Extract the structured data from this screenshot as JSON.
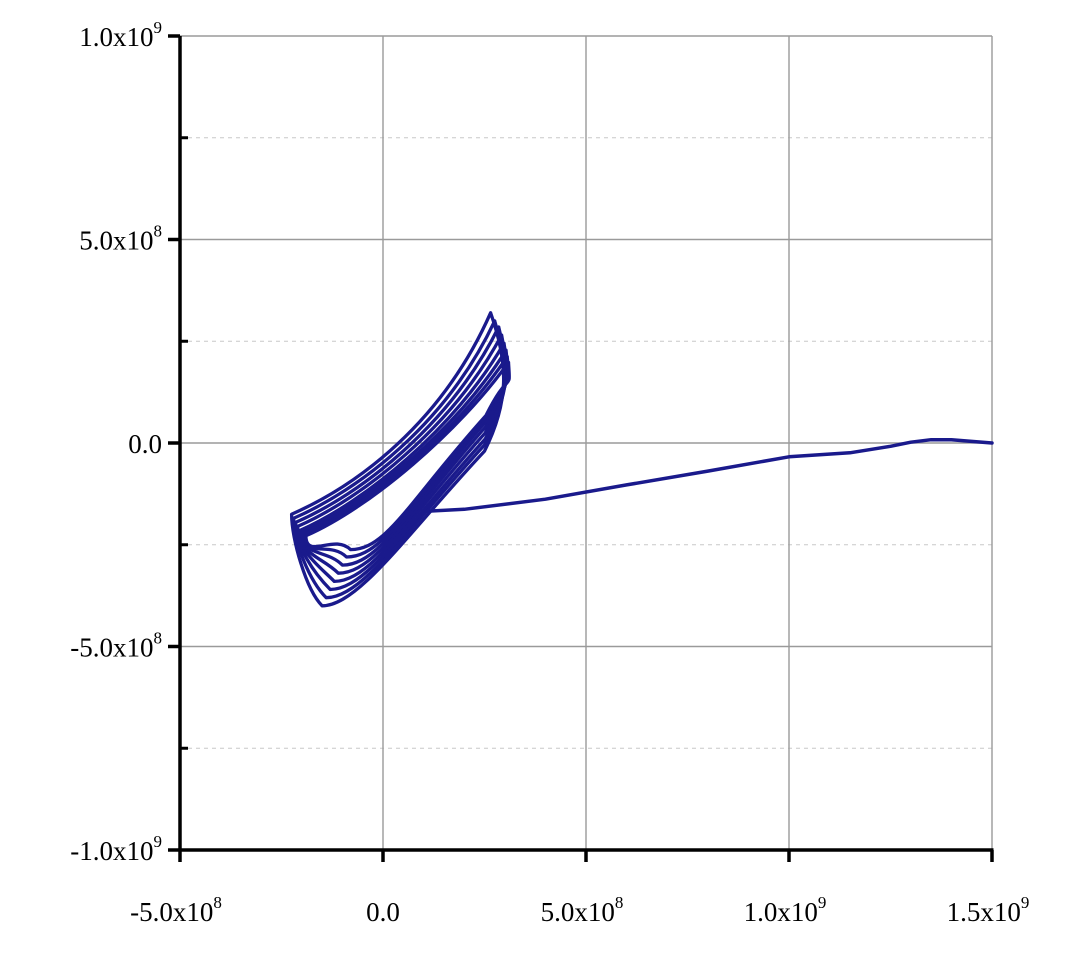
{
  "chart_data": {
    "type": "line",
    "title": "",
    "xlabel": "",
    "ylabel": "",
    "xlim": [
      -500000000,
      1500000000
    ],
    "ylim": [
      -1000000000,
      1000000000
    ],
    "grid": {
      "major": true,
      "minor_y": true,
      "minor_style": "dashed"
    },
    "line_color": "#1a1a8c",
    "x_ticks": [
      {
        "value": -500000000,
        "mantissa": "-5.0x10",
        "exponent": "8"
      },
      {
        "value": 0,
        "mantissa": "0.0",
        "exponent": ""
      },
      {
        "value": 500000000,
        "mantissa": "5.0x10",
        "exponent": "8"
      },
      {
        "value": 1000000000,
        "mantissa": "1.0x10",
        "exponent": "9"
      },
      {
        "value": 1500000000,
        "mantissa": "1.5x10",
        "exponent": "9"
      }
    ],
    "y_ticks": [
      {
        "value": 1000000000,
        "mantissa": "1.0x10",
        "exponent": "9"
      },
      {
        "value": 500000000,
        "mantissa": "5.0x10",
        "exponent": "8"
      },
      {
        "value": 0,
        "mantissa": "0.0",
        "exponent": ""
      },
      {
        "value": -500000000,
        "mantissa": "-5.0x10",
        "exponent": "8"
      },
      {
        "value": -1000000000,
        "mantissa": "-1.0x10",
        "exponent": "9"
      }
    ],
    "y_minor_ticks": [
      750000000,
      250000000,
      -250000000,
      -750000000
    ],
    "series": [
      {
        "kind": "tail",
        "points": [
          [
            1500000000,
            0
          ],
          [
            1450000000,
            4000000
          ],
          [
            1400000000,
            8000000
          ],
          [
            1350000000,
            8000000
          ],
          [
            1300000000,
            2000000
          ],
          [
            1250000000,
            -8000000
          ],
          [
            1150000000,
            -24000000
          ],
          [
            1000000000,
            -34000000
          ],
          [
            800000000,
            -69000000
          ],
          [
            600000000,
            -103000000
          ],
          [
            400000000,
            -138000000
          ],
          [
            200000000,
            -163000000
          ],
          [
            100000000,
            -168000000
          ]
        ]
      },
      {
        "kind": "hysteresis-loops",
        "cycles": [
          {
            "tip_x": 265000000,
            "tip_y": 320000000,
            "bottom_x": -150000000,
            "bottom_y": -400000000,
            "left_x": -225000000,
            "left_y": -175000000,
            "right_x": 310000000,
            "right_y": 100000000
          },
          {
            "tip_x": 275000000,
            "tip_y": 300000000,
            "bottom_x": -140000000,
            "bottom_y": -380000000,
            "left_x": -220000000,
            "left_y": -185000000,
            "right_x": 310000000,
            "right_y": 115000000
          },
          {
            "tip_x": 285000000,
            "tip_y": 285000000,
            "bottom_x": -130000000,
            "bottom_y": -360000000,
            "left_x": -215000000,
            "left_y": -195000000,
            "right_x": 312000000,
            "right_y": 130000000
          },
          {
            "tip_x": 292000000,
            "tip_y": 265000000,
            "bottom_x": -120000000,
            "bottom_y": -340000000,
            "left_x": -210000000,
            "left_y": -205000000,
            "right_x": 312000000,
            "right_y": 145000000
          },
          {
            "tip_x": 298000000,
            "tip_y": 245000000,
            "bottom_x": -110000000,
            "bottom_y": -320000000,
            "left_x": -205000000,
            "left_y": -215000000,
            "right_x": 313000000,
            "right_y": 160000000
          },
          {
            "tip_x": 303000000,
            "tip_y": 228000000,
            "bottom_x": -100000000,
            "bottom_y": -300000000,
            "left_x": -200000000,
            "left_y": -220000000,
            "right_x": 313000000,
            "right_y": 172000000
          },
          {
            "tip_x": 306000000,
            "tip_y": 212000000,
            "bottom_x": -90000000,
            "bottom_y": -280000000,
            "left_x": -195000000,
            "left_y": -225000000,
            "right_x": 314000000,
            "right_y": 182000000
          },
          {
            "tip_x": 309000000,
            "tip_y": 198000000,
            "bottom_x": -80000000,
            "bottom_y": -262000000,
            "left_x": -190000000,
            "left_y": -228000000,
            "right_x": 314000000,
            "right_y": 188000000
          }
        ]
      }
    ]
  }
}
